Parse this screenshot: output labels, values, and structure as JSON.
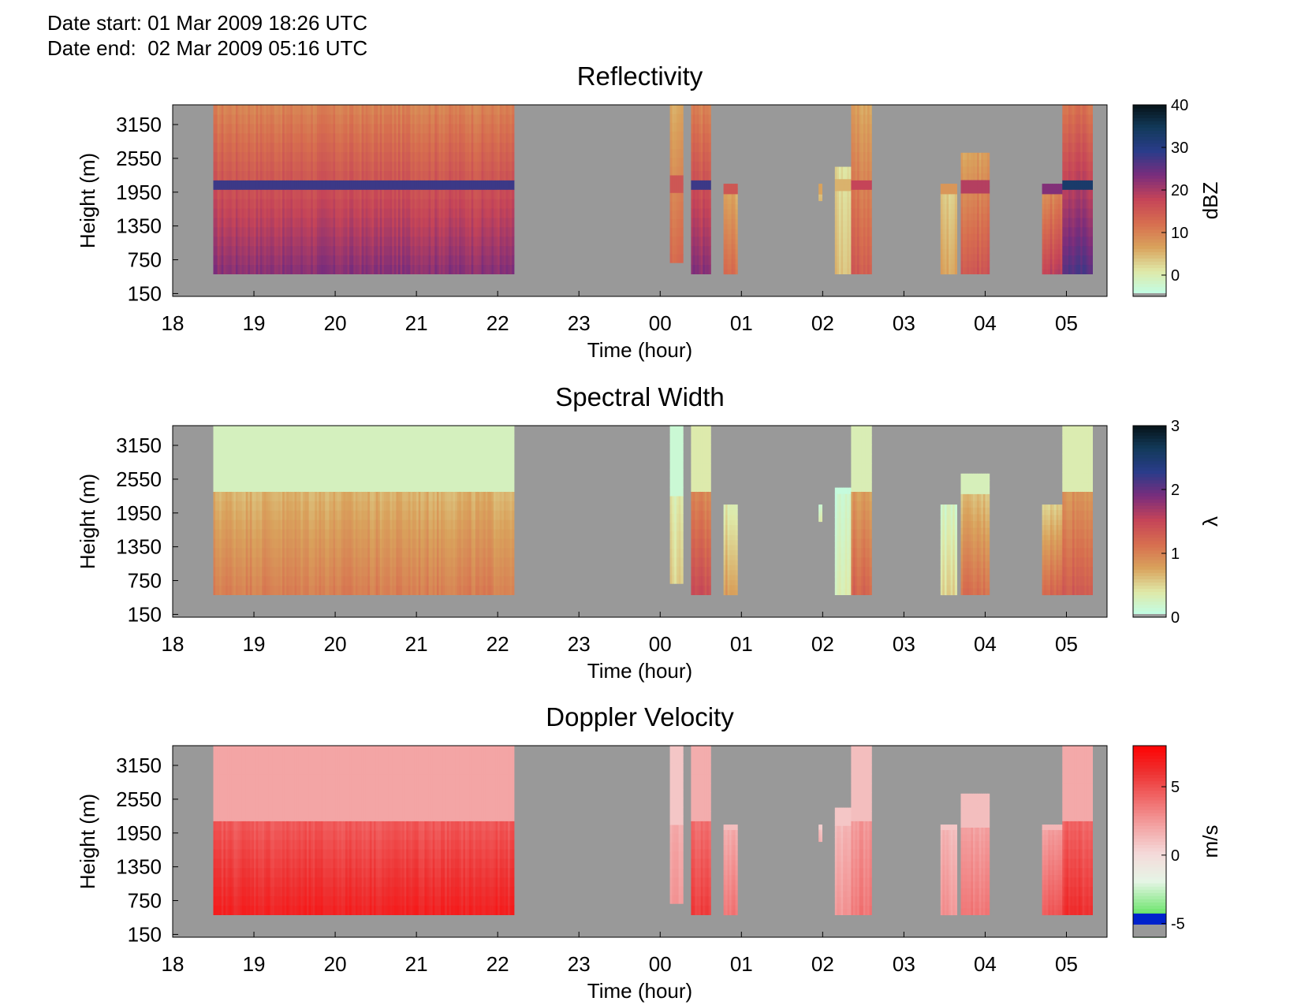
{
  "header": {
    "date_start": "Date start: 01 Mar 2009 18:26 UTC",
    "date_end": "Date end:  02 Mar 2009 05:16 UTC"
  },
  "chart_data": [
    {
      "type": "heatmap",
      "title": "Reflectivity",
      "xlabel": "Time (hour)",
      "ylabel": "Height (m)",
      "x_ticks": [
        "18",
        "19",
        "20",
        "21",
        "22",
        "23",
        "00",
        "01",
        "02",
        "03",
        "04",
        "05"
      ],
      "y_ticks": [
        "150",
        "750",
        "1350",
        "1950",
        "2550",
        "3150"
      ],
      "y_tick_values": [
        150,
        750,
        1350,
        1950,
        2550,
        3150
      ],
      "ylim": [
        100,
        3500
      ],
      "xlim_hours": [
        18.0,
        29.5
      ],
      "colorbar": {
        "label": "dBZ",
        "ticks": [
          "40",
          "30",
          "20",
          "10",
          "0"
        ],
        "range": [
          -5,
          40
        ]
      },
      "colormap": [
        "#bfffea",
        "#dfe9a8",
        "#d9a25c",
        "#d76e4f",
        "#c54458",
        "#7a2d7c",
        "#2a3c8a",
        "#123a5a",
        "#061014"
      ],
      "cloud_bands": [
        {
          "start": 18.5,
          "end": 22.2,
          "base": 500,
          "top": 3500,
          "mid": 22
        },
        {
          "start": 24.12,
          "end": 24.28,
          "base": 700,
          "top": 3500,
          "mid": 12
        },
        {
          "start": 24.38,
          "end": 24.62,
          "base": 500,
          "top": 3500,
          "mid": 22
        },
        {
          "start": 24.78,
          "end": 24.95,
          "base": 500,
          "top": 2100,
          "mid": 12
        },
        {
          "start": 25.95,
          "end": 25.99,
          "base": 1800,
          "top": 2100,
          "mid": 5
        },
        {
          "start": 26.15,
          "end": 26.35,
          "base": 500,
          "top": 2400,
          "mid": 4
        },
        {
          "start": 26.35,
          "end": 26.6,
          "base": 500,
          "top": 3500,
          "mid": 14
        },
        {
          "start": 27.45,
          "end": 27.65,
          "base": 500,
          "top": 2100,
          "mid": 6
        },
        {
          "start": 27.7,
          "end": 28.05,
          "base": 500,
          "top": 2650,
          "mid": 15
        },
        {
          "start": 28.7,
          "end": 28.95,
          "base": 500,
          "top": 2100,
          "mid": 18
        },
        {
          "start": 28.95,
          "end": 29.32,
          "base": 500,
          "top": 3500,
          "mid": 26
        }
      ]
    },
    {
      "type": "heatmap",
      "title": "Spectral Width",
      "xlabel": "Time (hour)",
      "ylabel": "Height (m)",
      "x_ticks": [
        "18",
        "19",
        "20",
        "21",
        "22",
        "23",
        "00",
        "01",
        "02",
        "03",
        "04",
        "05"
      ],
      "y_ticks": [
        "150",
        "750",
        "1350",
        "1950",
        "2550",
        "3150"
      ],
      "y_tick_values": [
        150,
        750,
        1350,
        1950,
        2550,
        3150
      ],
      "ylim": [
        100,
        3500
      ],
      "xlim_hours": [
        18.0,
        29.5
      ],
      "colorbar": {
        "label": "λ",
        "ticks": [
          "3",
          "2",
          "1",
          "0"
        ],
        "range": [
          0,
          3
        ]
      },
      "colormap": [
        "#bfffea",
        "#dfe9a8",
        "#d9a25c",
        "#d76e4f",
        "#c54458",
        "#7a2d7c",
        "#2a3c8a",
        "#123a5a",
        "#061014"
      ],
      "cloud_bands": [
        {
          "start": 18.5,
          "end": 22.2,
          "base": 500,
          "top": 3500,
          "mid": 1.0
        },
        {
          "start": 24.12,
          "end": 24.28,
          "base": 700,
          "top": 3500,
          "mid": 0.5
        },
        {
          "start": 24.38,
          "end": 24.62,
          "base": 500,
          "top": 3500,
          "mid": 1.4
        },
        {
          "start": 24.78,
          "end": 24.95,
          "base": 500,
          "top": 2100,
          "mid": 0.8
        },
        {
          "start": 25.95,
          "end": 25.99,
          "base": 1800,
          "top": 2100,
          "mid": 0.4
        },
        {
          "start": 26.15,
          "end": 26.35,
          "base": 500,
          "top": 2400,
          "mid": 0.3
        },
        {
          "start": 26.35,
          "end": 26.6,
          "base": 500,
          "top": 3500,
          "mid": 1.2
        },
        {
          "start": 27.45,
          "end": 27.65,
          "base": 500,
          "top": 2100,
          "mid": 0.5
        },
        {
          "start": 27.7,
          "end": 28.05,
          "base": 500,
          "top": 2650,
          "mid": 1.1
        },
        {
          "start": 28.7,
          "end": 28.95,
          "base": 500,
          "top": 2100,
          "mid": 1.2
        },
        {
          "start": 28.95,
          "end": 29.32,
          "base": 500,
          "top": 3500,
          "mid": 1.3
        }
      ]
    },
    {
      "type": "heatmap",
      "title": "Doppler Velocity",
      "xlabel": "Time (hour)",
      "ylabel": "Height (m)",
      "x_ticks": [
        "18",
        "19",
        "20",
        "21",
        "22",
        "23",
        "00",
        "01",
        "02",
        "03",
        "04",
        "05"
      ],
      "y_ticks": [
        "150",
        "750",
        "1350",
        "1950",
        "2550",
        "3150"
      ],
      "y_tick_values": [
        150,
        750,
        1350,
        1950,
        2550,
        3150
      ],
      "ylim": [
        100,
        3500
      ],
      "xlim_hours": [
        18.0,
        29.5
      ],
      "colorbar": {
        "label": "m/s",
        "ticks": [
          "5",
          "0",
          "-5"
        ],
        "range": [
          -6,
          8
        ]
      },
      "colormap": [
        "#00cc00",
        "#7fe77f",
        "#e6f5e6",
        "#f4dada",
        "#f3a4a4",
        "#f06a6a",
        "#ee3030",
        "#ff0000"
      ],
      "cloud_bands": [
        {
          "start": 18.5,
          "end": 22.2,
          "base": 500,
          "top": 3500,
          "mid": 6.5
        },
        {
          "start": 24.12,
          "end": 24.28,
          "base": 700,
          "top": 3500,
          "mid": 2.5
        },
        {
          "start": 24.38,
          "end": 24.62,
          "base": 500,
          "top": 3500,
          "mid": 5.5
        },
        {
          "start": 24.78,
          "end": 24.95,
          "base": 500,
          "top": 2100,
          "mid": 3.5
        },
        {
          "start": 25.95,
          "end": 25.99,
          "base": 1800,
          "top": 2100,
          "mid": 1.5
        },
        {
          "start": 26.15,
          "end": 26.35,
          "base": 500,
          "top": 2400,
          "mid": 2.5
        },
        {
          "start": 26.35,
          "end": 26.6,
          "base": 500,
          "top": 3500,
          "mid": 3.5
        },
        {
          "start": 27.45,
          "end": 27.65,
          "base": 500,
          "top": 2100,
          "mid": 2.5
        },
        {
          "start": 27.7,
          "end": 28.05,
          "base": 500,
          "top": 2650,
          "mid": 3.5
        },
        {
          "start": 28.7,
          "end": 28.95,
          "base": 500,
          "top": 2100,
          "mid": 4.5
        },
        {
          "start": 28.95,
          "end": 29.32,
          "base": 500,
          "top": 3500,
          "mid": 6.0
        }
      ]
    }
  ],
  "colors": {
    "background_no_data": "#999999",
    "axis": "#000000"
  }
}
